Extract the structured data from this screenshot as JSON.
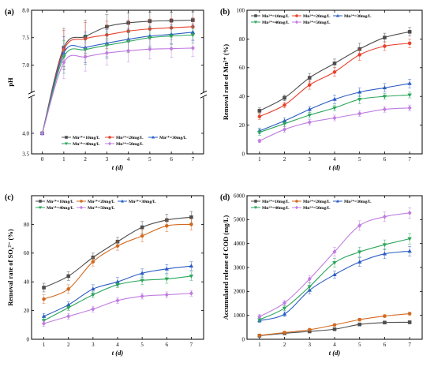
{
  "chart_data": [
    {
      "type": "line",
      "panel_label": "(a)",
      "title": "",
      "xlabel": "t (d)",
      "ylabel": "pH",
      "xlim": [
        -0.5,
        7.5
      ],
      "ylim_lower": [
        3.5,
        4.8
      ],
      "ylim_upper": [
        6.5,
        8.0
      ],
      "axis_break": true,
      "x_ticks": [
        0,
        1,
        2,
        3,
        4,
        5,
        6,
        7
      ],
      "y_ticks_lower": [
        3.5,
        4.0
      ],
      "y_ticks_upper": [
        7.0,
        7.5,
        8.0
      ],
      "y_tick_labels": [
        "3.5",
        "4.0",
        "7.0",
        "7.5",
        "8.0"
      ],
      "legend_position": "bottom-right",
      "legend_columns": 3,
      "x": [
        0,
        1,
        2,
        3,
        4,
        5,
        6,
        7
      ],
      "series": [
        {
          "name": "Mn²⁺=10mg/L",
          "color": "#4d4d4d",
          "marker": "square",
          "values": [
            4.0,
            7.32,
            7.52,
            7.7,
            7.77,
            7.8,
            7.81,
            7.82
          ],
          "errors": [
            0.0,
            0.35,
            0.3,
            0.22,
            0.18,
            0.16,
            0.15,
            0.15
          ]
        },
        {
          "name": "Mn²⁺=20mg/L",
          "color": "#e8402c",
          "marker": "circle",
          "values": [
            4.0,
            7.28,
            7.48,
            7.55,
            7.62,
            7.66,
            7.68,
            7.7
          ],
          "errors": [
            0.0,
            0.35,
            0.3,
            0.25,
            0.2,
            0.18,
            0.17,
            0.16
          ]
        },
        {
          "name": "Mn²⁺=30mg/L",
          "color": "#2b5cc4",
          "marker": "triangle",
          "values": [
            4.0,
            7.22,
            7.32,
            7.4,
            7.47,
            7.53,
            7.56,
            7.6
          ],
          "errors": [
            0.0,
            0.3,
            0.28,
            0.25,
            0.2,
            0.18,
            0.17,
            0.15
          ]
        },
        {
          "name": "Mn²⁺=40mg/L",
          "color": "#2aa65a",
          "marker": "triangle-down",
          "values": [
            4.0,
            7.15,
            7.28,
            7.36,
            7.43,
            7.5,
            7.53,
            7.55
          ],
          "errors": [
            0.0,
            0.3,
            0.27,
            0.24,
            0.2,
            0.18,
            0.16,
            0.15
          ]
        },
        {
          "name": "Mn²⁺=50mg/L",
          "color": "#c07ce0",
          "marker": "diamond",
          "values": [
            4.0,
            7.05,
            7.15,
            7.22,
            7.26,
            7.29,
            7.3,
            7.31
          ],
          "errors": [
            0.0,
            0.3,
            0.26,
            0.22,
            0.2,
            0.18,
            0.16,
            0.15
          ]
        }
      ]
    },
    {
      "type": "line",
      "panel_label": "(b)",
      "title": "",
      "xlabel": "t (d)",
      "ylabel": "Removal rate of Mn²⁺ (%)",
      "xlim": [
        0.5,
        7.5
      ],
      "ylim": [
        0,
        100
      ],
      "x_ticks": [
        1,
        2,
        3,
        4,
        5,
        6,
        7
      ],
      "y_ticks": [
        0,
        20,
        40,
        60,
        80,
        100
      ],
      "legend_position": "top-left",
      "legend_columns": 3,
      "x": [
        1,
        2,
        3,
        4,
        5,
        6,
        7
      ],
      "series": [
        {
          "name": "Mn²⁺=10mg/L",
          "color": "#4d4d4d",
          "marker": "square",
          "values": [
            30,
            39,
            53,
            63,
            73,
            81,
            85
          ],
          "errors": [
            2,
            2,
            3,
            3,
            4,
            3,
            3
          ]
        },
        {
          "name": "Mn²⁺=20mg/L",
          "color": "#e8402c",
          "marker": "circle",
          "values": [
            26,
            34,
            48,
            57,
            69,
            75,
            77
          ],
          "errors": [
            2,
            2,
            3,
            3,
            4,
            3,
            3
          ]
        },
        {
          "name": "Mn²⁺=30mg/L",
          "color": "#2b5cc4",
          "marker": "triangle",
          "values": [
            16,
            23,
            31,
            38,
            43,
            46,
            49
          ],
          "errors": [
            2,
            2,
            2,
            3,
            3,
            3,
            3
          ]
        },
        {
          "name": "Mn²⁺=40mg/L",
          "color": "#2aa65a",
          "marker": "triangle-down",
          "values": [
            15,
            21,
            27,
            32,
            38,
            40,
            41
          ],
          "errors": [
            2,
            2,
            2,
            2,
            3,
            2,
            2
          ]
        },
        {
          "name": "Mn²⁺=50mg/L",
          "color": "#c07ce0",
          "marker": "diamond",
          "values": [
            9,
            17,
            22,
            25,
            28,
            31,
            32
          ],
          "errors": [
            1,
            2,
            2,
            2,
            2,
            2,
            2
          ]
        }
      ]
    },
    {
      "type": "line",
      "panel_label": "(c)",
      "title": "",
      "xlabel": "t (d)",
      "ylabel": "Removal rate of SO₄²⁻ (%)",
      "xlim": [
        0.5,
        7.5
      ],
      "ylim": [
        0,
        100
      ],
      "x_ticks": [
        1,
        2,
        3,
        4,
        5,
        6,
        7
      ],
      "y_ticks": [
        0,
        20,
        40,
        60,
        80
      ],
      "legend_position": "top-left",
      "legend_columns": 3,
      "x": [
        1,
        2,
        3,
        4,
        5,
        6,
        7
      ],
      "series": [
        {
          "name": "Mn²⁺=10mg/L",
          "color": "#4d4d4d",
          "marker": "square",
          "values": [
            36,
            44,
            57,
            68,
            78,
            83,
            85
          ],
          "errors": [
            3,
            3,
            3,
            3,
            4,
            4,
            4
          ]
        },
        {
          "name": "Mn²⁺=20mg/L",
          "color": "#d2691e",
          "marker": "circle",
          "values": [
            28,
            35,
            54,
            65,
            72,
            79,
            80
          ],
          "errors": [
            3,
            3,
            3,
            3,
            4,
            4,
            4
          ]
        },
        {
          "name": "Mn²⁺=30mg/L",
          "color": "#2b5cc4",
          "marker": "triangle",
          "values": [
            16,
            24,
            35,
            40,
            46,
            49,
            51
          ],
          "errors": [
            2,
            2,
            3,
            3,
            3,
            3,
            3
          ]
        },
        {
          "name": "Mn²⁺=40mg/L",
          "color": "#2aa65a",
          "marker": "triangle-down",
          "values": [
            13,
            22,
            31,
            38,
            41,
            42,
            44
          ],
          "errors": [
            2,
            2,
            2,
            2,
            3,
            3,
            3
          ]
        },
        {
          "name": "Mn²⁺=50mg/L",
          "color": "#c07ce0",
          "marker": "diamond",
          "values": [
            11,
            16,
            21,
            27,
            30,
            31,
            32
          ],
          "errors": [
            2,
            2,
            2,
            2,
            2,
            2,
            2
          ]
        }
      ]
    },
    {
      "type": "line",
      "panel_label": "(d)",
      "title": "",
      "xlabel": "t (d)",
      "ylabel": "Accumulated release of COD (mg/L)",
      "xlim": [
        0.5,
        7.5
      ],
      "ylim": [
        0,
        6000
      ],
      "x_ticks": [
        1,
        2,
        3,
        4,
        5,
        6,
        7
      ],
      "y_ticks": [
        0,
        1000,
        2000,
        3000,
        4000,
        5000,
        6000
      ],
      "legend_position": "top-left",
      "legend_columns": 3,
      "x": [
        1,
        2,
        3,
        4,
        5,
        6,
        7
      ],
      "series": [
        {
          "name": "Mn²⁺=10mg/L",
          "color": "#4d4d4d",
          "marker": "square",
          "values": [
            150,
            250,
            330,
            420,
            620,
            700,
            710
          ],
          "errors": [
            40,
            40,
            40,
            50,
            50,
            50,
            50
          ]
        },
        {
          "name": "Mn²⁺=20mg/L",
          "color": "#d2691e",
          "marker": "circle",
          "values": [
            160,
            280,
            400,
            600,
            820,
            970,
            1070
          ],
          "errors": [
            40,
            40,
            50,
            50,
            60,
            60,
            60
          ]
        },
        {
          "name": "Mn²⁺=30mg/L",
          "color": "#2b5cc4",
          "marker": "triangle",
          "values": [
            780,
            1050,
            2050,
            2700,
            3230,
            3570,
            3680
          ],
          "errors": [
            80,
            100,
            150,
            150,
            180,
            200,
            200
          ]
        },
        {
          "name": "Mn²⁺=40mg/L",
          "color": "#2aa65a",
          "marker": "triangle-down",
          "values": [
            820,
            1300,
            2200,
            3200,
            3650,
            3950,
            4200
          ],
          "errors": [
            80,
            100,
            150,
            180,
            200,
            200,
            220
          ]
        },
        {
          "name": "Mn²⁺=50mg/L",
          "color": "#c07ce0",
          "marker": "diamond",
          "values": [
            950,
            1520,
            2520,
            3660,
            4750,
            5120,
            5280
          ],
          "errors": [
            80,
            100,
            150,
            180,
            200,
            200,
            220
          ]
        }
      ]
    }
  ]
}
